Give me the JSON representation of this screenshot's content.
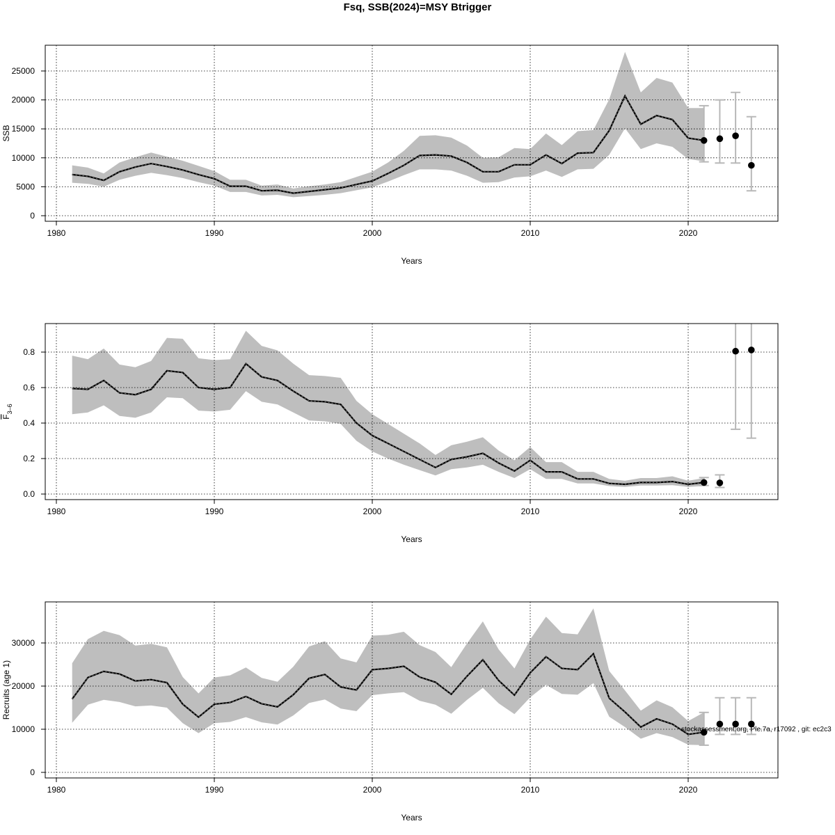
{
  "figure": {
    "title": "Fsq, SSB(2024)=MSY Btrigger",
    "footer": "stockassessment.org, Ple.7a, r17092 , git: ec2c3"
  },
  "colors": {
    "band": "#bebebe",
    "line": "#000000",
    "errorbar": "#b8b8b8",
    "grid": "#000000"
  },
  "chart_data": [
    {
      "type": "line",
      "name": "ssb",
      "title": "",
      "xlabel": "Years",
      "ylabel": "SSB",
      "xlim": [
        1980,
        2025
      ],
      "ylim": [
        0,
        28000
      ],
      "x_ticks": [
        1980,
        1990,
        2000,
        2010,
        2020
      ],
      "y_ticks": [
        0,
        5000,
        10000,
        15000,
        20000,
        25000
      ],
      "grid": true,
      "x": [
        1981,
        1982,
        1983,
        1984,
        1985,
        1986,
        1987,
        1988,
        1989,
        1990,
        1991,
        1992,
        1993,
        1994,
        1995,
        1996,
        1997,
        1998,
        1999,
        2000,
        2001,
        2002,
        2003,
        2004,
        2005,
        2006,
        2007,
        2008,
        2009,
        2010,
        2011,
        2012,
        2013,
        2014,
        2015,
        2016,
        2017,
        2018,
        2019,
        2020,
        2021
      ],
      "estimate": [
        7100,
        6800,
        6100,
        7600,
        8400,
        9000,
        8500,
        7900,
        7100,
        6400,
        5100,
        5100,
        4300,
        4400,
        3900,
        4200,
        4500,
        4800,
        5400,
        6000,
        7300,
        8700,
        10400,
        10500,
        10300,
        9200,
        7600,
        7600,
        8800,
        8800,
        10500,
        9000,
        10800,
        10900,
        14700,
        20700,
        15800,
        17300,
        16600,
        13400,
        13000
      ],
      "lower": [
        5700,
        5500,
        5000,
        6200,
        6900,
        7400,
        7000,
        6500,
        5800,
        5200,
        4100,
        4100,
        3500,
        3600,
        3200,
        3400,
        3600,
        3900,
        4400,
        4900,
        5900,
        7000,
        8000,
        8000,
        7800,
        6900,
        5700,
        5800,
        6600,
        6800,
        7800,
        6700,
        8000,
        8100,
        10500,
        15100,
        11500,
        12500,
        11900,
        9800,
        9400
      ],
      "upper": [
        8700,
        8300,
        7300,
        9200,
        10100,
        10900,
        10200,
        9500,
        8600,
        7700,
        6200,
        6200,
        5200,
        5400,
        4700,
        5100,
        5400,
        5800,
        6700,
        7600,
        9200,
        11200,
        13800,
        13900,
        13500,
        12100,
        10000,
        10100,
        11700,
        11500,
        14200,
        12200,
        14600,
        14800,
        20100,
        28300,
        21300,
        23800,
        23000,
        18600,
        18600
      ],
      "forecast": {
        "x": [
          2021,
          2022,
          2023,
          2024
        ],
        "median": [
          13000,
          13300,
          13800,
          8700
        ],
        "lower": [
          9300,
          9100,
          9100,
          4300
        ],
        "upper": [
          19000,
          20000,
          21300,
          17100
        ]
      }
    },
    {
      "type": "line",
      "name": "fbar",
      "title": "",
      "xlabel": "Years",
      "ylabel": "F3-6",
      "ylabel_base": "F",
      "ylabel_sub": "3–6",
      "xlim": [
        1980,
        2025
      ],
      "ylim": [
        0,
        0.95
      ],
      "x_ticks": [
        1980,
        1990,
        2000,
        2010,
        2020
      ],
      "y_ticks": [
        0.0,
        0.2,
        0.4,
        0.6,
        0.8
      ],
      "y_tick_labels": [
        "0.0",
        "0.2",
        "0.4",
        "0.6",
        "0.8"
      ],
      "grid": true,
      "x": [
        1981,
        1982,
        1983,
        1984,
        1985,
        1986,
        1987,
        1988,
        1989,
        1990,
        1991,
        1992,
        1993,
        1994,
        1995,
        1996,
        1997,
        1998,
        1999,
        2000,
        2001,
        2002,
        2003,
        2004,
        2005,
        2006,
        2007,
        2008,
        2009,
        2010,
        2011,
        2012,
        2013,
        2014,
        2015,
        2016,
        2017,
        2018,
        2019,
        2020,
        2021
      ],
      "estimate": [
        0.595,
        0.59,
        0.64,
        0.57,
        0.56,
        0.59,
        0.695,
        0.685,
        0.6,
        0.59,
        0.6,
        0.735,
        0.66,
        0.64,
        0.58,
        0.525,
        0.52,
        0.505,
        0.4,
        0.33,
        0.285,
        0.24,
        0.195,
        0.15,
        0.195,
        0.21,
        0.23,
        0.175,
        0.13,
        0.19,
        0.125,
        0.125,
        0.085,
        0.085,
        0.06,
        0.055,
        0.065,
        0.065,
        0.07,
        0.055,
        0.065
      ],
      "lower": [
        0.45,
        0.46,
        0.5,
        0.44,
        0.43,
        0.46,
        0.545,
        0.54,
        0.47,
        0.465,
        0.475,
        0.58,
        0.52,
        0.505,
        0.46,
        0.415,
        0.41,
        0.395,
        0.3,
        0.24,
        0.2,
        0.165,
        0.135,
        0.105,
        0.14,
        0.15,
        0.165,
        0.125,
        0.09,
        0.14,
        0.085,
        0.085,
        0.06,
        0.06,
        0.045,
        0.04,
        0.048,
        0.048,
        0.05,
        0.04,
        0.045
      ],
      "upper": [
        0.78,
        0.76,
        0.82,
        0.73,
        0.715,
        0.75,
        0.88,
        0.875,
        0.765,
        0.755,
        0.76,
        0.92,
        0.835,
        0.81,
        0.735,
        0.67,
        0.665,
        0.655,
        0.525,
        0.45,
        0.395,
        0.34,
        0.285,
        0.22,
        0.275,
        0.295,
        0.32,
        0.245,
        0.19,
        0.265,
        0.18,
        0.18,
        0.125,
        0.125,
        0.085,
        0.075,
        0.09,
        0.09,
        0.1,
        0.075,
        0.09
      ],
      "forecast": {
        "x": [
          2021,
          2022,
          2023,
          2024
        ],
        "median": [
          0.065,
          0.063,
          0.805,
          0.812
        ],
        "lower": [
          0.048,
          0.037,
          0.365,
          0.315
        ],
        "upper": [
          0.093,
          0.108,
          1.05,
          1.05
        ]
      }
    },
    {
      "type": "line",
      "name": "recruits",
      "title": "",
      "xlabel": "Years",
      "ylabel": "Recruits (age 1)",
      "xlim": [
        1980,
        2025
      ],
      "ylim": [
        0,
        38000
      ],
      "x_ticks": [
        1980,
        1990,
        2000,
        2010,
        2020
      ],
      "y_ticks": [
        0,
        10000,
        20000,
        30000
      ],
      "grid": true,
      "x": [
        1981,
        1982,
        1983,
        1984,
        1985,
        1986,
        1987,
        1988,
        1989,
        1990,
        1991,
        1992,
        1993,
        1994,
        1995,
        1996,
        1997,
        1998,
        1999,
        2000,
        2001,
        2002,
        2003,
        2004,
        2005,
        2006,
        2007,
        2008,
        2009,
        2010,
        2011,
        2012,
        2013,
        2014,
        2015,
        2016,
        2017,
        2018,
        2019,
        2020,
        2021
      ],
      "estimate": [
        17000,
        22000,
        23400,
        22800,
        21200,
        21500,
        20800,
        15800,
        12800,
        15800,
        16200,
        17600,
        15900,
        15200,
        18000,
        21800,
        22700,
        19800,
        19100,
        23800,
        24100,
        24600,
        22100,
        20900,
        18100,
        22300,
        26100,
        21300,
        17900,
        23100,
        26800,
        24100,
        23800,
        27500,
        17200,
        14000,
        10500,
        12400,
        11200,
        8800,
        9300
      ],
      "lower": [
        11500,
        15700,
        16800,
        16300,
        15300,
        15500,
        15000,
        11400,
        9100,
        11400,
        11700,
        12800,
        11600,
        11100,
        13200,
        16100,
        16900,
        14800,
        14200,
        17900,
        18300,
        18600,
        16600,
        15700,
        13600,
        16800,
        19600,
        16000,
        13500,
        17400,
        20300,
        18200,
        18000,
        20700,
        12900,
        10500,
        7800,
        9100,
        8200,
        6400,
        6300
      ],
      "upper": [
        25300,
        30900,
        32800,
        31800,
        29400,
        29800,
        29000,
        22100,
        18300,
        22000,
        22500,
        24300,
        21900,
        21000,
        24500,
        29200,
        30400,
        26400,
        25500,
        31700,
        31900,
        32600,
        29500,
        27900,
        24400,
        29900,
        35000,
        28500,
        24100,
        30800,
        36100,
        32300,
        32000,
        38000,
        23500,
        19000,
        14300,
        16700,
        15100,
        11900,
        13900
      ],
      "forecast": {
        "x": [
          2021,
          2022,
          2023,
          2024
        ],
        "median": [
          9300,
          11200,
          11200,
          11200
        ],
        "lower": [
          6300,
          8800,
          8800,
          8800
        ],
        "upper": [
          13900,
          17300,
          17300,
          17300
        ]
      }
    }
  ]
}
